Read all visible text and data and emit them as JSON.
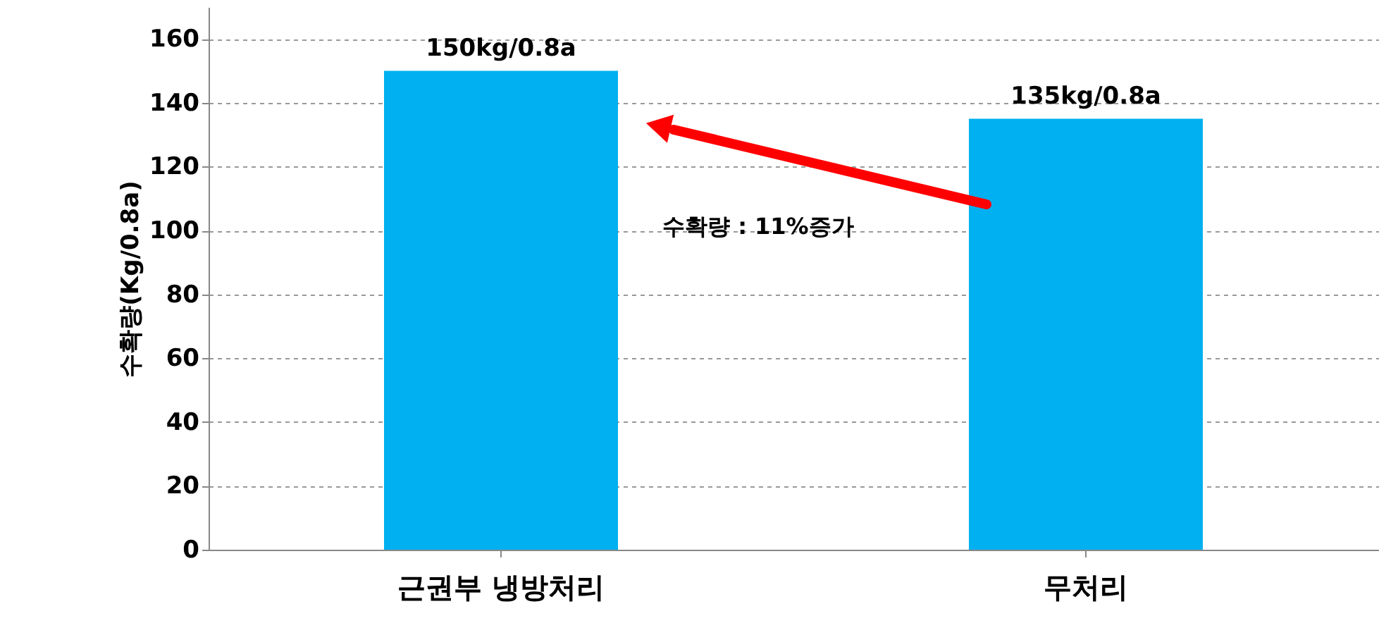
{
  "chart_data": {
    "type": "bar",
    "ylabel": "수확량(Kg/0.8a)",
    "categories": [
      "근권부 냉방처리",
      "무처리"
    ],
    "series": [
      {
        "color": "#00b0f0",
        "values": [
          150,
          135
        ]
      }
    ],
    "value_labels": [
      "150kg/0.8a",
      "135kg/0.8a"
    ],
    "ylim": [
      0,
      170
    ],
    "yticks": [
      0,
      20,
      40,
      60,
      80,
      100,
      120,
      140,
      160
    ],
    "grid": "y",
    "annotations": [
      "수확량 : 11%증가"
    ]
  }
}
